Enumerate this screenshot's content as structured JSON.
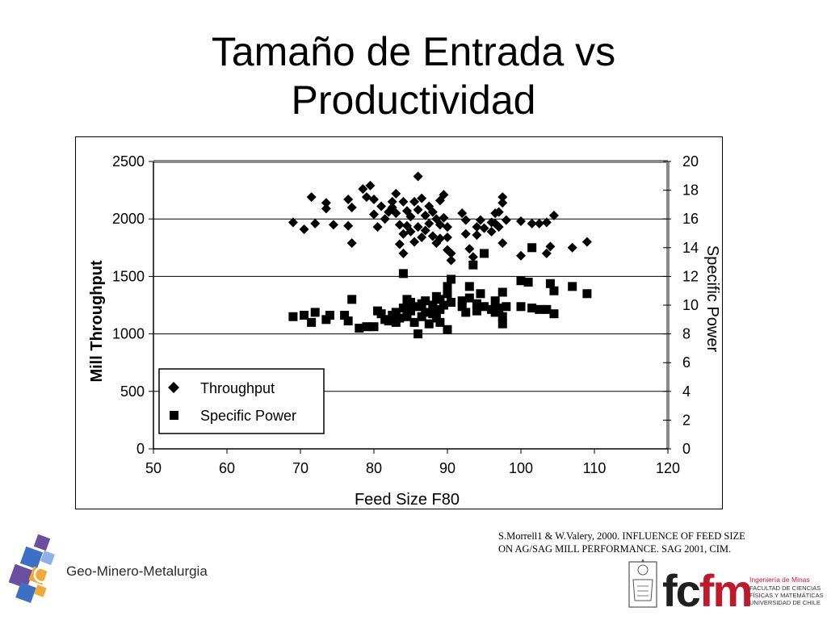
{
  "slide": {
    "title_line1": "Tamaño de Entrada vs",
    "title_line2": "Productividad",
    "citation_line1": "S.Morrell1 & W.Valery, 2000. INFLUENCE OF FEED SIZE",
    "citation_line2": "ON AG/SAG MILL PERFORMANCE. SAG 2001, CIM."
  },
  "logos": {
    "geo_text": "Geo-Minero-Metalurgia",
    "fcfm_text_a": "fc",
    "fcfm_text_b": "fm",
    "fcfm_sub1": "Ingeniería de Minas",
    "fcfm_sub2": "FACULTAD DE CIENCIAS",
    "fcfm_sub3": "FÍSICAS Y MATEMÁTICAS",
    "fcfm_sub4": "UNIVERSIDAD DE CHILE",
    "colors": {
      "geo_blue": "#3d6fc4",
      "geo_purple": "#6a4fa0",
      "geo_orange": "#f2a93b",
      "fcfm_red": "#c0192c"
    }
  },
  "chart_data": {
    "type": "scatter",
    "xlabel": "Feed Size F80",
    "ylabel": "Mill Throughput",
    "y2label": "Specific Power",
    "xlim": [
      50,
      120
    ],
    "ylim": [
      0,
      2500
    ],
    "y2lim": [
      0,
      20
    ],
    "x_ticks": [
      50,
      60,
      70,
      80,
      90,
      100,
      110,
      120
    ],
    "y_ticks": [
      0,
      500,
      1000,
      1500,
      2000,
      2500
    ],
    "y2_ticks": [
      0,
      2,
      4,
      6,
      8,
      10,
      12,
      14,
      16,
      18,
      20
    ],
    "grid": "horizontal at major left ticks",
    "legend": {
      "placement": "lower-left",
      "entries": [
        "Throughput",
        "Specific Power"
      ]
    },
    "series": [
      {
        "name": "Throughput",
        "marker": "diamond",
        "axis": "left",
        "points": [
          [
            69,
            1970
          ],
          [
            70.5,
            1910
          ],
          [
            71.5,
            2190
          ],
          [
            72,
            1960
          ],
          [
            73.5,
            2140
          ],
          [
            73.5,
            2090
          ],
          [
            74.5,
            1950
          ],
          [
            76.5,
            1940
          ],
          [
            76.5,
            2170
          ],
          [
            77,
            2100
          ],
          [
            77,
            1790
          ],
          [
            78.5,
            2260
          ],
          [
            79,
            2190
          ],
          [
            79.5,
            2290
          ],
          [
            80,
            2170
          ],
          [
            80,
            2040
          ],
          [
            80.5,
            1930
          ],
          [
            81,
            2110
          ],
          [
            81.5,
            2000
          ],
          [
            82,
            2060
          ],
          [
            82.5,
            2150
          ],
          [
            82.5,
            2100
          ],
          [
            83,
            2220
          ],
          [
            83,
            2050
          ],
          [
            83.5,
            1950
          ],
          [
            83.5,
            1780
          ],
          [
            84,
            1870
          ],
          [
            84,
            1700
          ],
          [
            84,
            2150
          ],
          [
            84.5,
            2070
          ],
          [
            84.5,
            1940
          ],
          [
            85,
            2020
          ],
          [
            85,
            1890
          ],
          [
            85.5,
            2150
          ],
          [
            85.5,
            1800
          ],
          [
            86,
            2370
          ],
          [
            86,
            2080
          ],
          [
            86,
            1930
          ],
          [
            86.5,
            2180
          ],
          [
            86.5,
            1840
          ],
          [
            87,
            2030
          ],
          [
            87,
            1900
          ],
          [
            87.5,
            2110
          ],
          [
            87.5,
            1960
          ],
          [
            88,
            2060
          ],
          [
            88,
            1850
          ],
          [
            88.5,
            2000
          ],
          [
            88.5,
            1790
          ],
          [
            89,
            2160
          ],
          [
            89,
            1950
          ],
          [
            89,
            1830
          ],
          [
            89.5,
            2210
          ],
          [
            89.5,
            2010
          ],
          [
            90,
            1930
          ],
          [
            90,
            1840
          ],
          [
            90,
            1730
          ],
          [
            90.5,
            1700
          ],
          [
            90.5,
            1640
          ],
          [
            92,
            2050
          ],
          [
            92.5,
            1990
          ],
          [
            92.5,
            1870
          ],
          [
            93,
            1740
          ],
          [
            93.5,
            1670
          ],
          [
            94,
            1930
          ],
          [
            94,
            1860
          ],
          [
            94.5,
            1990
          ],
          [
            95,
            1920
          ],
          [
            96,
            1970
          ],
          [
            96,
            1890
          ],
          [
            96.5,
            2050
          ],
          [
            96.5,
            1960
          ],
          [
            97,
            2060
          ],
          [
            97,
            1930
          ],
          [
            97.5,
            2190
          ],
          [
            97.5,
            2140
          ],
          [
            97.5,
            1790
          ],
          [
            98,
            1990
          ],
          [
            100,
            1980
          ],
          [
            100,
            1680
          ],
          [
            101.5,
            1960
          ],
          [
            102.5,
            1960
          ],
          [
            103.5,
            1970
          ],
          [
            103.5,
            1700
          ],
          [
            104,
            1760
          ],
          [
            104.5,
            2030
          ],
          [
            107,
            1750
          ],
          [
            109,
            1800
          ]
        ]
      },
      {
        "name": "Specific Power",
        "marker": "square",
        "axis": "right",
        "points": [
          [
            69,
            9.2
          ],
          [
            70.5,
            9.3
          ],
          [
            71.5,
            8.8
          ],
          [
            72,
            9.5
          ],
          [
            73.5,
            9.0
          ],
          [
            74,
            9.3
          ],
          [
            76,
            9.3
          ],
          [
            76.5,
            8.9
          ],
          [
            77,
            10.4
          ],
          [
            78,
            8.4
          ],
          [
            79,
            8.5
          ],
          [
            80,
            8.5
          ],
          [
            80.5,
            9.6
          ],
          [
            81,
            9.4
          ],
          [
            81.5,
            9.0
          ],
          [
            82,
            8.9
          ],
          [
            82.5,
            9.3
          ],
          [
            83,
            9.5
          ],
          [
            83,
            8.8
          ],
          [
            83.5,
            9.1
          ],
          [
            84,
            9.8
          ],
          [
            84,
            12.2
          ],
          [
            84.5,
            10.4
          ],
          [
            84.5,
            9.2
          ],
          [
            85,
            10.2
          ],
          [
            85,
            9.6
          ],
          [
            85.5,
            8.8
          ],
          [
            86,
            8.0
          ],
          [
            86,
            9.9
          ],
          [
            86.5,
            10.1
          ],
          [
            86.5,
            9.2
          ],
          [
            87,
            10.3
          ],
          [
            87,
            9.5
          ],
          [
            87.5,
            8.7
          ],
          [
            88,
            10.0
          ],
          [
            88,
            9.4
          ],
          [
            88.5,
            10.6
          ],
          [
            88.5,
            9.1
          ],
          [
            89,
            10.4
          ],
          [
            89,
            9.7
          ],
          [
            89,
            8.8
          ],
          [
            89.5,
            10.0
          ],
          [
            90,
            8.3
          ],
          [
            90,
            10.8
          ],
          [
            90,
            11.3
          ],
          [
            90.5,
            11.8
          ],
          [
            90.5,
            10.2
          ],
          [
            92,
            10.3
          ],
          [
            92,
            9.9
          ],
          [
            92.5,
            9.5
          ],
          [
            93,
            11.3
          ],
          [
            93,
            10.5
          ],
          [
            93.5,
            12.8
          ],
          [
            94,
            10.1
          ],
          [
            94,
            9.6
          ],
          [
            94.5,
            10.8
          ],
          [
            95,
            13.6
          ],
          [
            95,
            9.9
          ],
          [
            96,
            9.7
          ],
          [
            96.5,
            10.3
          ],
          [
            96.5,
            9.5
          ],
          [
            97,
            9.8
          ],
          [
            97.5,
            10.9
          ],
          [
            97.5,
            9.2
          ],
          [
            97.5,
            8.7
          ],
          [
            98,
            9.9
          ],
          [
            100,
            9.9
          ],
          [
            100,
            11.7
          ],
          [
            101,
            11.6
          ],
          [
            101.5,
            9.8
          ],
          [
            101.5,
            14.0
          ],
          [
            102.5,
            9.7
          ],
          [
            103.5,
            9.7
          ],
          [
            104,
            11.5
          ],
          [
            104.5,
            11.0
          ],
          [
            104.5,
            9.4
          ],
          [
            107,
            11.3
          ],
          [
            109,
            10.8
          ]
        ]
      }
    ]
  }
}
